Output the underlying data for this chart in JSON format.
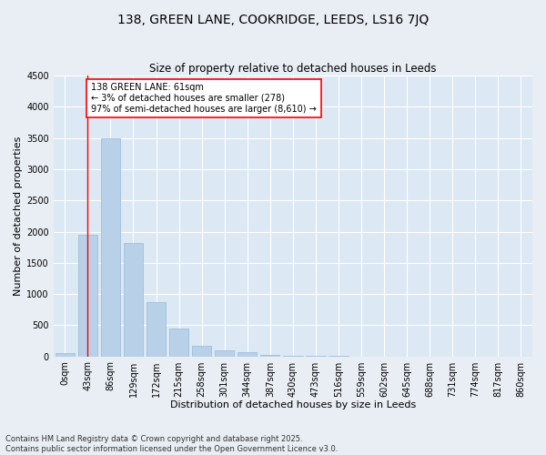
{
  "title": "138, GREEN LANE, COOKRIDGE, LEEDS, LS16 7JQ",
  "subtitle": "Size of property relative to detached houses in Leeds",
  "xlabel": "Distribution of detached houses by size in Leeds",
  "ylabel": "Number of detached properties",
  "bar_color": "#b8d0e8",
  "bar_edge_color": "#99bbd8",
  "fig_bg_color": "#e8eef4",
  "ax_bg_color": "#dce8f4",
  "categories": [
    "0sqm",
    "43sqm",
    "86sqm",
    "129sqm",
    "172sqm",
    "215sqm",
    "258sqm",
    "301sqm",
    "344sqm",
    "387sqm",
    "430sqm",
    "473sqm",
    "516sqm",
    "559sqm",
    "602sqm",
    "645sqm",
    "688sqm",
    "731sqm",
    "774sqm",
    "817sqm",
    "860sqm"
  ],
  "values": [
    55,
    1950,
    3500,
    1820,
    870,
    450,
    170,
    100,
    60,
    30,
    10,
    5,
    2,
    1,
    0,
    0,
    0,
    0,
    0,
    0,
    0
  ],
  "marker_bin": 1,
  "marker_label_line1": "138 GREEN LANE: 61sqm",
  "marker_label_line2": "← 3% of detached houses are smaller (278)",
  "marker_label_line3": "97% of semi-detached houses are larger (8,610) →",
  "ylim": [
    0,
    4500
  ],
  "yticks": [
    0,
    500,
    1000,
    1500,
    2000,
    2500,
    3000,
    3500,
    4000,
    4500
  ],
  "footnote1": "Contains HM Land Registry data © Crown copyright and database right 2025.",
  "footnote2": "Contains public sector information licensed under the Open Government Licence v3.0.",
  "title_fontsize": 10,
  "subtitle_fontsize": 8.5,
  "axis_label_fontsize": 8,
  "tick_fontsize": 7,
  "annotation_fontsize": 7,
  "footnote_fontsize": 6
}
